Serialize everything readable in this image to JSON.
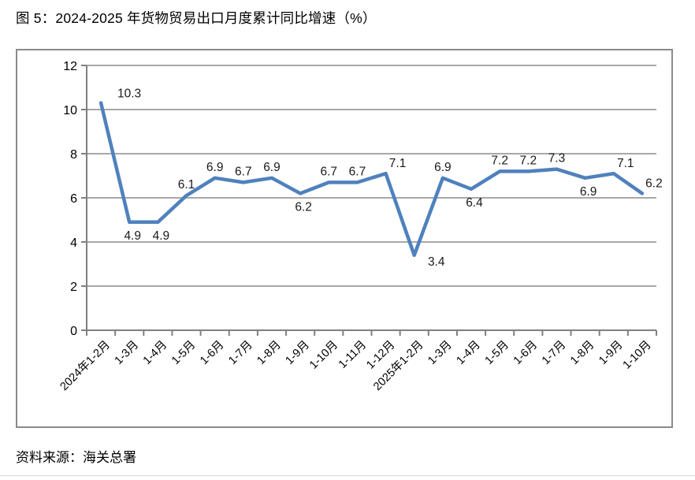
{
  "page": {
    "title": "图 5：2024-2025 年货物贸易出口月度累计同比增速（%）",
    "source": "资料来源：海关总署"
  },
  "chart_data": {
    "type": "line",
    "title": "图 5：2024-2025 年货物贸易出口月度累计同比增速（%）",
    "xlabel": "",
    "ylabel": "",
    "categories": [
      "2024年1-2月",
      "1-3月",
      "1-4月",
      "1-5月",
      "1-6月",
      "1-7月",
      "1-8月",
      "1-9月",
      "1-10月",
      "1-11月",
      "1-12月",
      "2025年1-2月",
      "1-3月",
      "1-4月",
      "1-5月",
      "1-6月",
      "1-7月",
      "1-8月",
      "1-9月",
      "1-10月"
    ],
    "values": [
      10.3,
      4.9,
      4.9,
      6.1,
      6.9,
      6.7,
      6.9,
      6.2,
      6.7,
      6.7,
      7.1,
      3.4,
      6.9,
      6.4,
      7.2,
      7.2,
      7.3,
      6.9,
      7.1,
      6.2
    ],
    "label_positions": [
      "above-right",
      "below",
      "below",
      "above",
      "above",
      "above",
      "above",
      "below",
      "above",
      "above",
      "above-right-sm",
      "below-right",
      "above",
      "below",
      "above",
      "above",
      "above",
      "below",
      "above-right-sm",
      "above-right-sm"
    ],
    "ylim": [
      0,
      12
    ],
    "yticks": [
      0,
      2,
      4,
      6,
      8,
      10,
      12
    ],
    "grid": "horizontal",
    "legend": "none",
    "line_color": "#4F81BD",
    "source": "资料来源：海关总署"
  }
}
